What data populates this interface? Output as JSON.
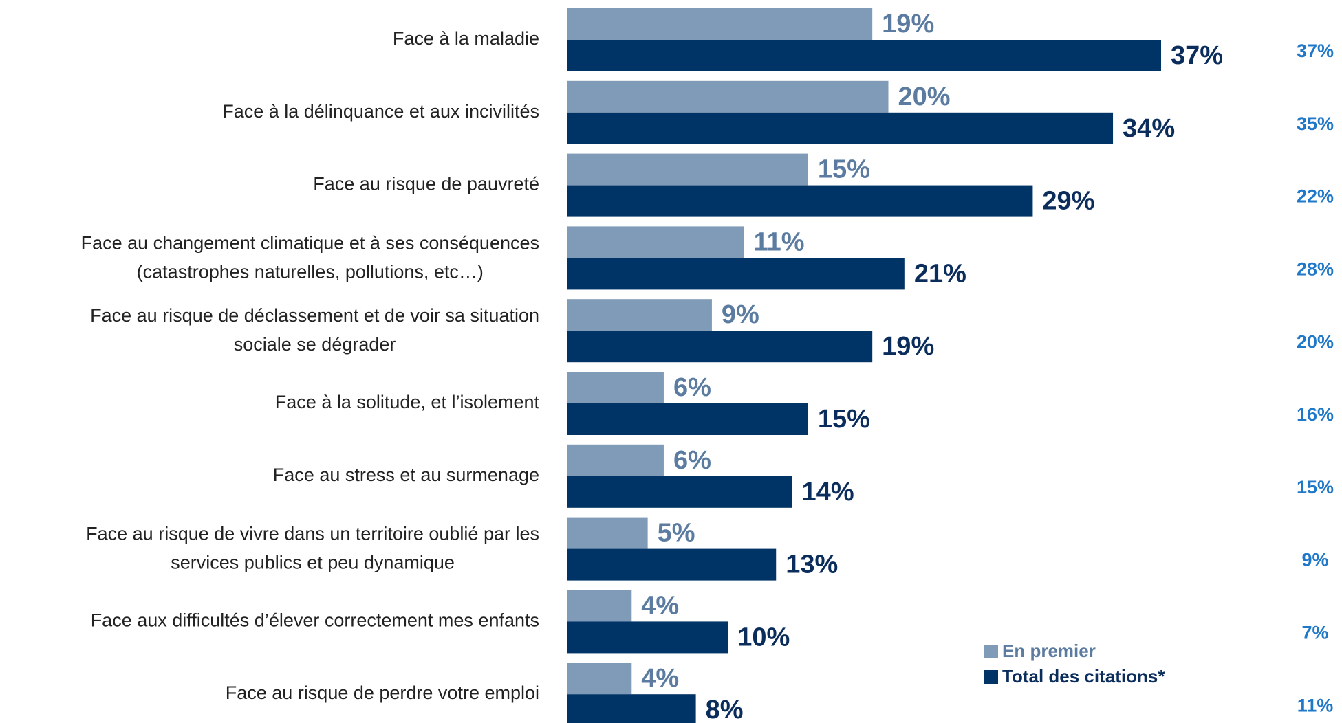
{
  "chart_data": {
    "type": "bar",
    "orientation": "horizontal",
    "categories": [
      "Face à la maladie",
      "Face à la délinquance et aux incivilités",
      "Face au risque de pauvreté",
      "Face au changement climatique et à ses conséquences\n(catastrophes naturelles, pollutions, etc…)",
      "Face au risque de déclassement et de voir sa situation\nsociale se dégrader",
      "Face à la solitude, et l’isolement",
      "Face au stress et au surmenage",
      "Face au risque de vivre dans un territoire oublié par les\nservices publics et peu dynamique",
      "Face aux difficultés d’élever correctement mes enfants",
      "Face au risque de perdre votre emploi"
    ],
    "series": [
      {
        "name": "En premier",
        "color": "#7f9bb7",
        "label_color": "#5b7ca0",
        "values": [
          19,
          20,
          15,
          11,
          9,
          6,
          6,
          5,
          4,
          4
        ],
        "value_labels": [
          "19%",
          "20%",
          "15%",
          "11%",
          "9%",
          "6%",
          "6%",
          "5%",
          "4%",
          "4%"
        ]
      },
      {
        "name": "Total des citations*",
        "color": "#003366",
        "label_color": "#0b2d5c",
        "values": [
          37,
          34,
          29,
          21,
          19,
          15,
          14,
          13,
          10,
          8
        ],
        "value_labels": [
          "37%",
          "34%",
          "29%",
          "21%",
          "19%",
          "15%",
          "14%",
          "13%",
          "10%",
          "8%"
        ]
      }
    ],
    "right_column_values": [
      37,
      35,
      22,
      28,
      20,
      16,
      15,
      9,
      7,
      11
    ],
    "right_column_labels": [
      "37%",
      "35%",
      "22%",
      "28%",
      "20%",
      "16%",
      "15%",
      "9%",
      "7%",
      "11%"
    ],
    "right_column_color": "#1f78c8",
    "xlim": [
      0,
      40
    ]
  }
}
